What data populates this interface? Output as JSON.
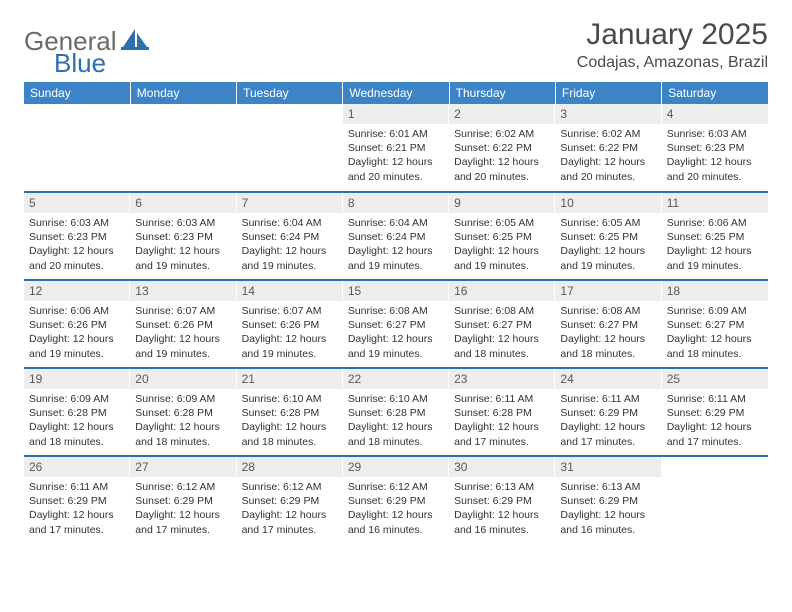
{
  "logo": {
    "text1": "General",
    "text2": "Blue"
  },
  "title": "January 2025",
  "location": "Codajas, Amazonas, Brazil",
  "weekdays": [
    "Sunday",
    "Monday",
    "Tuesday",
    "Wednesday",
    "Thursday",
    "Friday",
    "Saturday"
  ],
  "colors": {
    "header_bg": "#3d84c6",
    "accent": "#2e6fb0",
    "daynum_bg": "#eceded",
    "text_dark": "#4a4a4a",
    "cell_text": "#333333"
  },
  "weeks": [
    [
      {
        "n": "",
        "empty": true
      },
      {
        "n": "",
        "empty": true
      },
      {
        "n": "",
        "empty": true
      },
      {
        "n": "1",
        "sr": "6:01 AM",
        "ss": "6:21 PM",
        "dl": "12 hours and 20 minutes."
      },
      {
        "n": "2",
        "sr": "6:02 AM",
        "ss": "6:22 PM",
        "dl": "12 hours and 20 minutes."
      },
      {
        "n": "3",
        "sr": "6:02 AM",
        "ss": "6:22 PM",
        "dl": "12 hours and 20 minutes."
      },
      {
        "n": "4",
        "sr": "6:03 AM",
        "ss": "6:23 PM",
        "dl": "12 hours and 20 minutes."
      }
    ],
    [
      {
        "n": "5",
        "sr": "6:03 AM",
        "ss": "6:23 PM",
        "dl": "12 hours and 20 minutes."
      },
      {
        "n": "6",
        "sr": "6:03 AM",
        "ss": "6:23 PM",
        "dl": "12 hours and 19 minutes."
      },
      {
        "n": "7",
        "sr": "6:04 AM",
        "ss": "6:24 PM",
        "dl": "12 hours and 19 minutes."
      },
      {
        "n": "8",
        "sr": "6:04 AM",
        "ss": "6:24 PM",
        "dl": "12 hours and 19 minutes."
      },
      {
        "n": "9",
        "sr": "6:05 AM",
        "ss": "6:25 PM",
        "dl": "12 hours and 19 minutes."
      },
      {
        "n": "10",
        "sr": "6:05 AM",
        "ss": "6:25 PM",
        "dl": "12 hours and 19 minutes."
      },
      {
        "n": "11",
        "sr": "6:06 AM",
        "ss": "6:25 PM",
        "dl": "12 hours and 19 minutes."
      }
    ],
    [
      {
        "n": "12",
        "sr": "6:06 AM",
        "ss": "6:26 PM",
        "dl": "12 hours and 19 minutes."
      },
      {
        "n": "13",
        "sr": "6:07 AM",
        "ss": "6:26 PM",
        "dl": "12 hours and 19 minutes."
      },
      {
        "n": "14",
        "sr": "6:07 AM",
        "ss": "6:26 PM",
        "dl": "12 hours and 19 minutes."
      },
      {
        "n": "15",
        "sr": "6:08 AM",
        "ss": "6:27 PM",
        "dl": "12 hours and 19 minutes."
      },
      {
        "n": "16",
        "sr": "6:08 AM",
        "ss": "6:27 PM",
        "dl": "12 hours and 18 minutes."
      },
      {
        "n": "17",
        "sr": "6:08 AM",
        "ss": "6:27 PM",
        "dl": "12 hours and 18 minutes."
      },
      {
        "n": "18",
        "sr": "6:09 AM",
        "ss": "6:27 PM",
        "dl": "12 hours and 18 minutes."
      }
    ],
    [
      {
        "n": "19",
        "sr": "6:09 AM",
        "ss": "6:28 PM",
        "dl": "12 hours and 18 minutes."
      },
      {
        "n": "20",
        "sr": "6:09 AM",
        "ss": "6:28 PM",
        "dl": "12 hours and 18 minutes."
      },
      {
        "n": "21",
        "sr": "6:10 AM",
        "ss": "6:28 PM",
        "dl": "12 hours and 18 minutes."
      },
      {
        "n": "22",
        "sr": "6:10 AM",
        "ss": "6:28 PM",
        "dl": "12 hours and 18 minutes."
      },
      {
        "n": "23",
        "sr": "6:11 AM",
        "ss": "6:28 PM",
        "dl": "12 hours and 17 minutes."
      },
      {
        "n": "24",
        "sr": "6:11 AM",
        "ss": "6:29 PM",
        "dl": "12 hours and 17 minutes."
      },
      {
        "n": "25",
        "sr": "6:11 AM",
        "ss": "6:29 PM",
        "dl": "12 hours and 17 minutes."
      }
    ],
    [
      {
        "n": "26",
        "sr": "6:11 AM",
        "ss": "6:29 PM",
        "dl": "12 hours and 17 minutes."
      },
      {
        "n": "27",
        "sr": "6:12 AM",
        "ss": "6:29 PM",
        "dl": "12 hours and 17 minutes."
      },
      {
        "n": "28",
        "sr": "6:12 AM",
        "ss": "6:29 PM",
        "dl": "12 hours and 17 minutes."
      },
      {
        "n": "29",
        "sr": "6:12 AM",
        "ss": "6:29 PM",
        "dl": "12 hours and 16 minutes."
      },
      {
        "n": "30",
        "sr": "6:13 AM",
        "ss": "6:29 PM",
        "dl": "12 hours and 16 minutes."
      },
      {
        "n": "31",
        "sr": "6:13 AM",
        "ss": "6:29 PM",
        "dl": "12 hours and 16 minutes."
      },
      {
        "n": "",
        "empty": true
      }
    ]
  ],
  "labels": {
    "sunrise": "Sunrise:",
    "sunset": "Sunset:",
    "daylight": "Daylight:"
  }
}
